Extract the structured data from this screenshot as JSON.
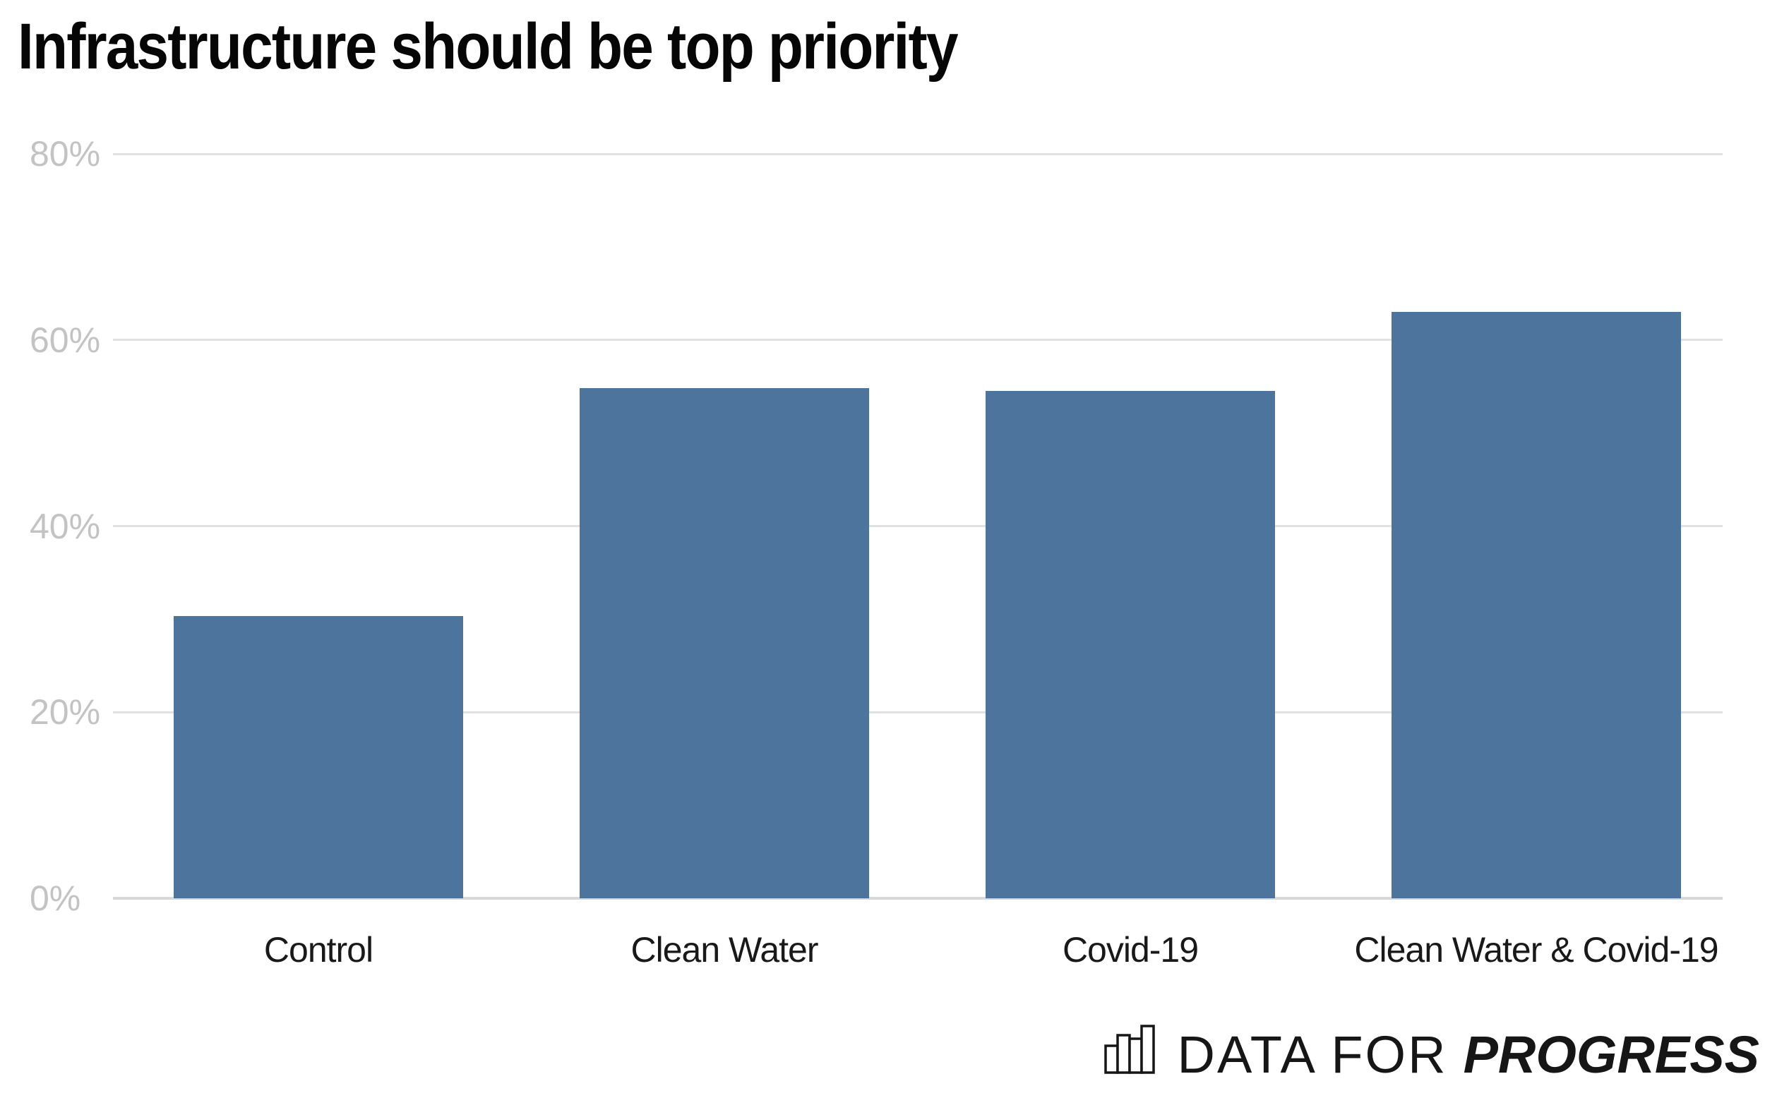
{
  "title": "Infrastructure should be top priority",
  "chart_data": {
    "type": "bar",
    "title": "Infrastructure should be top priority",
    "categories": [
      "Control",
      "Clean Water",
      "Covid-19",
      "Clean Water & Covid-19"
    ],
    "values": [
      30.3,
      54.8,
      54.5,
      63
    ],
    "unit": "%",
    "xlabel": "",
    "ylabel": "",
    "ylim": [
      0,
      80
    ],
    "ytick_labels": [
      "0%",
      "20%",
      "40%",
      "60%",
      "80%"
    ],
    "grid": "horizontal",
    "legend": "none",
    "bar_color": "#4d749d"
  },
  "colors": {
    "background": "#ffffff",
    "bar": "#4d749d",
    "gridline": "#e1e1e1",
    "baseline": "#d8d8d8",
    "ytick_text": "#c3c3c3",
    "xtick_text": "#191919",
    "title_text": "#060606",
    "logo_text": "#161616"
  },
  "logo": {
    "icon": "bar-chart-logo-icon",
    "icon_bar_heights": [
      38,
      53,
      48,
      66
    ],
    "prefix": "DATA FOR",
    "name": "PROGRESS"
  }
}
